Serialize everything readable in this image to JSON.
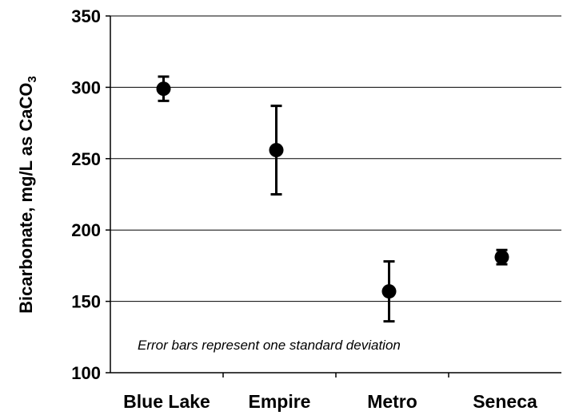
{
  "chart_data": {
    "type": "scatter",
    "ylabel": "Bicarbonate, mg/L as CaCO",
    "ylabel_subscript": "3",
    "categories": [
      "Blue Lake",
      "Empire",
      "Metro",
      "Seneca"
    ],
    "values": [
      299,
      256,
      157,
      181
    ],
    "error": [
      8.5,
      31,
      21,
      5
    ],
    "ylim": [
      100,
      350
    ],
    "yticks": [
      100,
      150,
      200,
      250,
      300,
      350
    ],
    "grid": true,
    "annotation": "Error bars represent one standard deviation"
  }
}
